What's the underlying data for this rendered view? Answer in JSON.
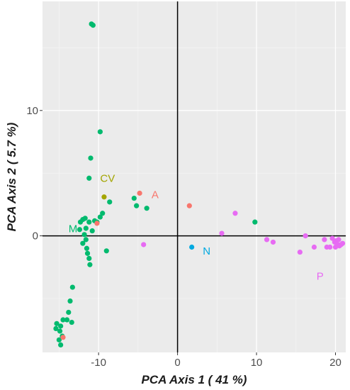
{
  "chart_data": {
    "type": "scatter",
    "title": "",
    "xlabel": "PCA Axis 1 ( 41 %)",
    "ylabel": "PCA Axis 2 ( 5.7 %)",
    "xlim": [
      -17.1,
      21.3
    ],
    "ylim": [
      -9.3,
      18.7
    ],
    "x_ticks": [
      -10,
      0,
      10,
      20
    ],
    "y_ticks": [
      0,
      10
    ],
    "x_tick_labels": [
      "-10",
      "0",
      "10",
      "20"
    ],
    "y_tick_labels": [
      "0",
      "10"
    ],
    "grid": true,
    "reference_lines": {
      "x": 0,
      "y": 0
    },
    "series": [
      {
        "name": "M",
        "color": "#00BA6E",
        "label_pos": [
          -13.8,
          0.3
        ],
        "points": [
          [
            -10.9,
            16.9
          ],
          [
            -10.7,
            16.8
          ],
          [
            -9.8,
            8.3
          ],
          [
            -11.0,
            6.2
          ],
          [
            -11.2,
            4.6
          ],
          [
            -8.6,
            2.7
          ],
          [
            -9.5,
            1.8
          ],
          [
            -9.8,
            1.5
          ],
          [
            -10.2,
            1.1
          ],
          [
            -10.5,
            1.2
          ],
          [
            -12.0,
            1.3
          ],
          [
            -11.2,
            1.1
          ],
          [
            -11.7,
            1.4
          ],
          [
            -12.3,
            1.1
          ],
          [
            -10.8,
            0.4
          ],
          [
            -11.6,
            0.6
          ],
          [
            -12.4,
            0.5
          ],
          [
            -11.8,
            0.1
          ],
          [
            -11.6,
            -0.3
          ],
          [
            -12.0,
            -0.6
          ],
          [
            -11.5,
            -1.0
          ],
          [
            -11.4,
            -1.4
          ],
          [
            -11.2,
            -1.8
          ],
          [
            -11.1,
            -2.3
          ],
          [
            -9.0,
            -1.2
          ],
          [
            -13.3,
            -4.1
          ],
          [
            -13.6,
            -5.2
          ],
          [
            -13.8,
            -6.1
          ],
          [
            -14.0,
            -6.7
          ],
          [
            -13.4,
            -6.9
          ],
          [
            -14.5,
            -6.7
          ],
          [
            -14.8,
            -7.2
          ],
          [
            -15.3,
            -7.0
          ],
          [
            -15.4,
            -7.4
          ],
          [
            -14.9,
            -7.6
          ],
          [
            -15.0,
            -8.3
          ],
          [
            -14.8,
            -8.7
          ],
          [
            -14.6,
            -8.0
          ],
          [
            -5.5,
            3.0
          ],
          [
            -5.2,
            2.4
          ],
          [
            -3.9,
            2.2
          ],
          [
            9.8,
            1.1
          ]
        ]
      },
      {
        "name": "CV",
        "color": "#A3A500",
        "label_pos": [
          -9.8,
          4.3
        ],
        "points": [
          [
            -9.3,
            3.1
          ]
        ]
      },
      {
        "name": "A",
        "color": "#F8766D",
        "label_pos": [
          -3.3,
          3.0
        ],
        "points": [
          [
            -4.8,
            3.4
          ],
          [
            1.5,
            2.4
          ],
          [
            -10.2,
            1.0
          ],
          [
            -14.5,
            -8.1
          ]
        ]
      },
      {
        "name": "N",
        "color": "#00A9E0",
        "label_pos": [
          3.2,
          -1.5
        ],
        "points": [
          [
            1.8,
            -0.9
          ]
        ]
      },
      {
        "name": "P",
        "color": "#E76BF3",
        "label_pos": [
          17.6,
          -3.5
        ],
        "points": [
          [
            -4.3,
            -0.7
          ],
          [
            5.6,
            0.2
          ],
          [
            7.3,
            1.8
          ],
          [
            11.3,
            -0.3
          ],
          [
            12.1,
            -0.5
          ],
          [
            15.5,
            -1.3
          ],
          [
            16.2,
            0.0
          ],
          [
            17.3,
            -0.9
          ],
          [
            18.6,
            -0.3
          ],
          [
            18.9,
            -0.9
          ],
          [
            19.3,
            -0.9
          ],
          [
            19.6,
            -0.2
          ],
          [
            19.9,
            -0.5
          ],
          [
            20.1,
            -0.4
          ],
          [
            20.3,
            -0.7
          ],
          [
            20.5,
            -0.8
          ],
          [
            20.7,
            -0.7
          ],
          [
            20.9,
            -0.6
          ],
          [
            20.0,
            -0.9
          ],
          [
            20.4,
            -0.3
          ]
        ]
      }
    ]
  }
}
